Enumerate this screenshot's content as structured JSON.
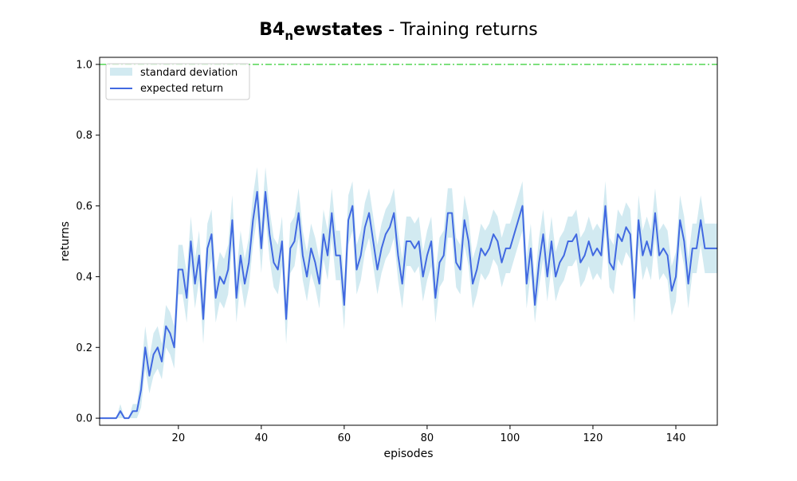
{
  "chart_data": {
    "type": "line",
    "title": {
      "main": "B4",
      "subscript": "n",
      "main_rest": "ewstates",
      "suffix": " - Training returns"
    },
    "xlabel": "episodes",
    "ylabel": "returns",
    "xlim": [
      1,
      150
    ],
    "ylim": [
      -0.02,
      1.02
    ],
    "xticks": [
      20,
      40,
      60,
      80,
      100,
      120,
      140
    ],
    "yticks": [
      0.0,
      0.2,
      0.4,
      0.6,
      0.8,
      1.0
    ],
    "ytick_labels": [
      "0.0",
      "0.2",
      "0.4",
      "0.6",
      "0.8",
      "1.0"
    ],
    "xtick_labels": [
      "20",
      "40",
      "60",
      "80",
      "100",
      "120",
      "140"
    ],
    "grid": false,
    "legend": {
      "placement": "top-left",
      "entries": [
        {
          "name": "standard deviation",
          "kind": "fill",
          "color": "#add8e6"
        },
        {
          "name": "expected return",
          "kind": "line",
          "color": "#4169e1"
        }
      ]
    },
    "reference_line": {
      "y": 1.0,
      "color": "#32cd32",
      "style": "dash-dot"
    },
    "series": [
      {
        "name": "expected return",
        "color": "#4169e1",
        "x": [
          1,
          2,
          3,
          4,
          5,
          6,
          7,
          8,
          9,
          10,
          11,
          12,
          13,
          14,
          15,
          16,
          17,
          18,
          19,
          20,
          21,
          22,
          23,
          24,
          25,
          26,
          27,
          28,
          29,
          30,
          31,
          32,
          33,
          34,
          35,
          36,
          37,
          38,
          39,
          40,
          41,
          42,
          43,
          44,
          45,
          46,
          47,
          48,
          49,
          50,
          51,
          52,
          53,
          54,
          55,
          56,
          57,
          58,
          59,
          60,
          61,
          62,
          63,
          64,
          65,
          66,
          67,
          68,
          69,
          70,
          71,
          72,
          73,
          74,
          75,
          76,
          77,
          78,
          79,
          80,
          81,
          82,
          83,
          84,
          85,
          86,
          87,
          88,
          89,
          90,
          91,
          92,
          93,
          94,
          95,
          96,
          97,
          98,
          99,
          100,
          101,
          102,
          103,
          104,
          105,
          106,
          107,
          108,
          109,
          110,
          111,
          112,
          113,
          114,
          115,
          116,
          117,
          118,
          119,
          120,
          121,
          122,
          123,
          124,
          125,
          126,
          127,
          128,
          129,
          130,
          131,
          132,
          133,
          134,
          135,
          136,
          137,
          138,
          139,
          140,
          141,
          142,
          143,
          144,
          145,
          146,
          147,
          148,
          149,
          150
        ],
        "values": [
          0.0,
          0.0,
          0.0,
          0.0,
          0.0,
          0.02,
          0.0,
          0.0,
          0.02,
          0.02,
          0.08,
          0.2,
          0.12,
          0.18,
          0.2,
          0.16,
          0.26,
          0.24,
          0.2,
          0.42,
          0.42,
          0.34,
          0.5,
          0.38,
          0.46,
          0.28,
          0.48,
          0.52,
          0.34,
          0.4,
          0.38,
          0.42,
          0.56,
          0.34,
          0.46,
          0.38,
          0.44,
          0.56,
          0.64,
          0.48,
          0.64,
          0.52,
          0.44,
          0.42,
          0.5,
          0.28,
          0.48,
          0.5,
          0.58,
          0.46,
          0.4,
          0.48,
          0.44,
          0.38,
          0.52,
          0.46,
          0.58,
          0.46,
          0.46,
          0.32,
          0.56,
          0.6,
          0.42,
          0.46,
          0.54,
          0.58,
          0.5,
          0.42,
          0.48,
          0.52,
          0.54,
          0.58,
          0.46,
          0.38,
          0.5,
          0.5,
          0.48,
          0.5,
          0.4,
          0.46,
          0.5,
          0.34,
          0.44,
          0.46,
          0.58,
          0.58,
          0.44,
          0.42,
          0.56,
          0.5,
          0.38,
          0.42,
          0.48,
          0.46,
          0.48,
          0.52,
          0.5,
          0.44,
          0.48,
          0.48,
          0.52,
          0.56,
          0.6,
          0.38,
          0.48,
          0.32,
          0.44,
          0.52,
          0.4,
          0.5,
          0.4,
          0.44,
          0.46,
          0.5,
          0.5,
          0.52,
          0.44,
          0.46,
          0.5,
          0.46,
          0.48,
          0.46,
          0.6,
          0.44,
          0.42,
          0.52,
          0.5,
          0.54,
          0.52,
          0.34,
          0.56,
          0.46,
          0.5,
          0.46,
          0.58,
          0.46,
          0.48,
          0.46,
          0.36,
          0.4,
          0.56,
          0.5,
          0.38,
          0.48,
          0.48,
          0.56,
          0.48,
          0.48,
          0.48,
          0.48
        ]
      },
      {
        "name": "standard deviation",
        "kind": "band",
        "color": "#add8e6",
        "x": [
          1,
          2,
          3,
          4,
          5,
          6,
          7,
          8,
          9,
          10,
          11,
          12,
          13,
          14,
          15,
          16,
          17,
          18,
          19,
          20,
          21,
          22,
          23,
          24,
          25,
          26,
          27,
          28,
          29,
          30,
          31,
          32,
          33,
          34,
          35,
          36,
          37,
          38,
          39,
          40,
          41,
          42,
          43,
          44,
          45,
          46,
          47,
          48,
          49,
          50,
          51,
          52,
          53,
          54,
          55,
          56,
          57,
          58,
          59,
          60,
          61,
          62,
          63,
          64,
          65,
          66,
          67,
          68,
          69,
          70,
          71,
          72,
          73,
          74,
          75,
          76,
          77,
          78,
          79,
          80,
          81,
          82,
          83,
          84,
          85,
          86,
          87,
          88,
          89,
          90,
          91,
          92,
          93,
          94,
          95,
          96,
          97,
          98,
          99,
          100,
          101,
          102,
          103,
          104,
          105,
          106,
          107,
          108,
          109,
          110,
          111,
          112,
          113,
          114,
          115,
          116,
          117,
          118,
          119,
          120,
          121,
          122,
          123,
          124,
          125,
          126,
          127,
          128,
          129,
          130,
          131,
          132,
          133,
          134,
          135,
          136,
          137,
          138,
          139,
          140,
          141,
          142,
          143,
          144,
          145,
          146,
          147,
          148,
          149,
          150
        ],
        "lower": [
          0.0,
          0.0,
          0.0,
          0.0,
          0.0,
          0.0,
          0.0,
          0.0,
          0.0,
          0.0,
          0.03,
          0.14,
          0.07,
          0.12,
          0.14,
          0.11,
          0.2,
          0.18,
          0.14,
          0.35,
          0.35,
          0.27,
          0.43,
          0.31,
          0.39,
          0.21,
          0.41,
          0.45,
          0.27,
          0.33,
          0.31,
          0.35,
          0.49,
          0.27,
          0.39,
          0.31,
          0.37,
          0.49,
          0.57,
          0.41,
          0.57,
          0.45,
          0.37,
          0.35,
          0.43,
          0.21,
          0.41,
          0.43,
          0.51,
          0.39,
          0.33,
          0.41,
          0.37,
          0.31,
          0.45,
          0.39,
          0.51,
          0.39,
          0.39,
          0.25,
          0.49,
          0.53,
          0.35,
          0.39,
          0.47,
          0.51,
          0.43,
          0.35,
          0.41,
          0.45,
          0.47,
          0.51,
          0.39,
          0.31,
          0.43,
          0.43,
          0.41,
          0.43,
          0.33,
          0.39,
          0.43,
          0.27,
          0.37,
          0.39,
          0.51,
          0.51,
          0.37,
          0.35,
          0.49,
          0.43,
          0.31,
          0.35,
          0.41,
          0.39,
          0.41,
          0.45,
          0.43,
          0.37,
          0.41,
          0.41,
          0.45,
          0.49,
          0.53,
          0.31,
          0.41,
          0.27,
          0.37,
          0.45,
          0.33,
          0.43,
          0.33,
          0.37,
          0.39,
          0.43,
          0.43,
          0.45,
          0.37,
          0.39,
          0.43,
          0.39,
          0.41,
          0.39,
          0.53,
          0.37,
          0.35,
          0.45,
          0.43,
          0.47,
          0.45,
          0.27,
          0.49,
          0.39,
          0.43,
          0.39,
          0.51,
          0.39,
          0.41,
          0.39,
          0.29,
          0.33,
          0.49,
          0.43,
          0.31,
          0.41,
          0.41,
          0.49,
          0.41,
          0.41,
          0.41,
          0.41
        ],
        "upper": [
          0.0,
          0.0,
          0.0,
          0.0,
          0.0,
          0.04,
          0.0,
          0.0,
          0.04,
          0.04,
          0.13,
          0.26,
          0.17,
          0.24,
          0.26,
          0.21,
          0.32,
          0.3,
          0.26,
          0.49,
          0.49,
          0.41,
          0.57,
          0.45,
          0.53,
          0.35,
          0.55,
          0.59,
          0.41,
          0.47,
          0.45,
          0.49,
          0.63,
          0.41,
          0.53,
          0.45,
          0.51,
          0.63,
          0.71,
          0.55,
          0.71,
          0.59,
          0.51,
          0.49,
          0.57,
          0.35,
          0.55,
          0.57,
          0.65,
          0.53,
          0.47,
          0.55,
          0.51,
          0.45,
          0.59,
          0.53,
          0.65,
          0.53,
          0.53,
          0.39,
          0.63,
          0.67,
          0.49,
          0.53,
          0.61,
          0.65,
          0.57,
          0.49,
          0.55,
          0.59,
          0.61,
          0.65,
          0.53,
          0.45,
          0.57,
          0.57,
          0.55,
          0.57,
          0.47,
          0.53,
          0.57,
          0.41,
          0.51,
          0.53,
          0.65,
          0.65,
          0.51,
          0.49,
          0.63,
          0.57,
          0.45,
          0.49,
          0.55,
          0.53,
          0.55,
          0.59,
          0.57,
          0.51,
          0.55,
          0.55,
          0.59,
          0.63,
          0.67,
          0.45,
          0.55,
          0.39,
          0.51,
          0.59,
          0.47,
          0.57,
          0.47,
          0.51,
          0.53,
          0.57,
          0.57,
          0.59,
          0.51,
          0.53,
          0.57,
          0.53,
          0.55,
          0.53,
          0.67,
          0.51,
          0.49,
          0.59,
          0.57,
          0.61,
          0.59,
          0.41,
          0.63,
          0.53,
          0.57,
          0.53,
          0.65,
          0.53,
          0.55,
          0.53,
          0.43,
          0.47,
          0.63,
          0.57,
          0.45,
          0.55,
          0.55,
          0.63,
          0.55,
          0.55,
          0.55,
          0.55
        ]
      }
    ]
  }
}
